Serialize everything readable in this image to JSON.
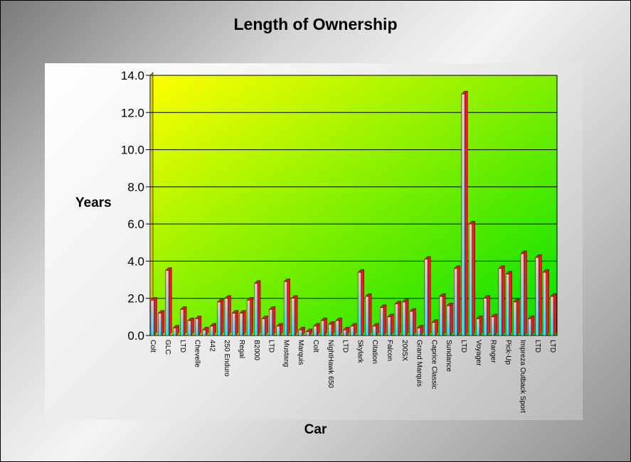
{
  "chart_data": {
    "type": "bar",
    "title": "Length of Ownership",
    "xlabel": "Car",
    "ylabel": "Years",
    "ylim": [
      0,
      14
    ],
    "yticks": [
      "0.0",
      "2.0",
      "4.0",
      "6.0",
      "8.0",
      "10.0",
      "12.0",
      "14.0"
    ],
    "grid": true,
    "legend": "none",
    "categories": [
      "Colt",
      "",
      "GLC",
      "",
      "LTD",
      "",
      "Chevelle",
      "",
      "442",
      "",
      "250 Enduro",
      "",
      "Regal",
      "",
      "B2000",
      "",
      "LTD",
      "",
      "Mustang",
      "",
      "Marquis",
      "",
      "Colt",
      "",
      "NightHawk 650",
      "",
      "LTD",
      "",
      "Skylark",
      "",
      "Citation",
      "",
      "Falcon",
      "",
      "200SX",
      "",
      "Grand Marquis",
      "",
      "Caprice Classic",
      "",
      "Sundance",
      "",
      "LTD",
      "",
      "Voyager",
      "",
      "Ranger",
      "",
      "Pick-Up",
      "",
      "Impreza Outback Sport",
      "",
      "LTD",
      "",
      "LTD"
    ],
    "values": [
      1.9,
      1.2,
      3.5,
      0.4,
      1.4,
      0.8,
      0.9,
      0.3,
      0.5,
      1.8,
      2.0,
      1.2,
      1.2,
      1.9,
      2.8,
      0.9,
      1.4,
      0.5,
      2.9,
      2.0,
      0.3,
      0.2,
      0.5,
      0.8,
      0.6,
      0.8,
      0.3,
      0.5,
      3.4,
      2.1,
      0.5,
      1.5,
      1.0,
      1.7,
      1.8,
      1.3,
      0.4,
      4.1,
      0.7,
      2.1,
      1.6,
      3.6,
      13.0,
      6.0,
      0.9,
      2.0,
      1.0,
      3.6,
      3.3,
      1.8,
      4.4,
      0.9,
      4.2,
      3.4,
      2.1
    ],
    "colors": {
      "bar_front_top": "#fcbcbc",
      "bar_front_bottom": "#30d8ff",
      "bar_side": "#e02020",
      "bar_outline": "#400000",
      "plot_start": "#ffff00",
      "plot_end": "#00e000",
      "wall": "#d0d000",
      "grid": "#000000"
    }
  }
}
